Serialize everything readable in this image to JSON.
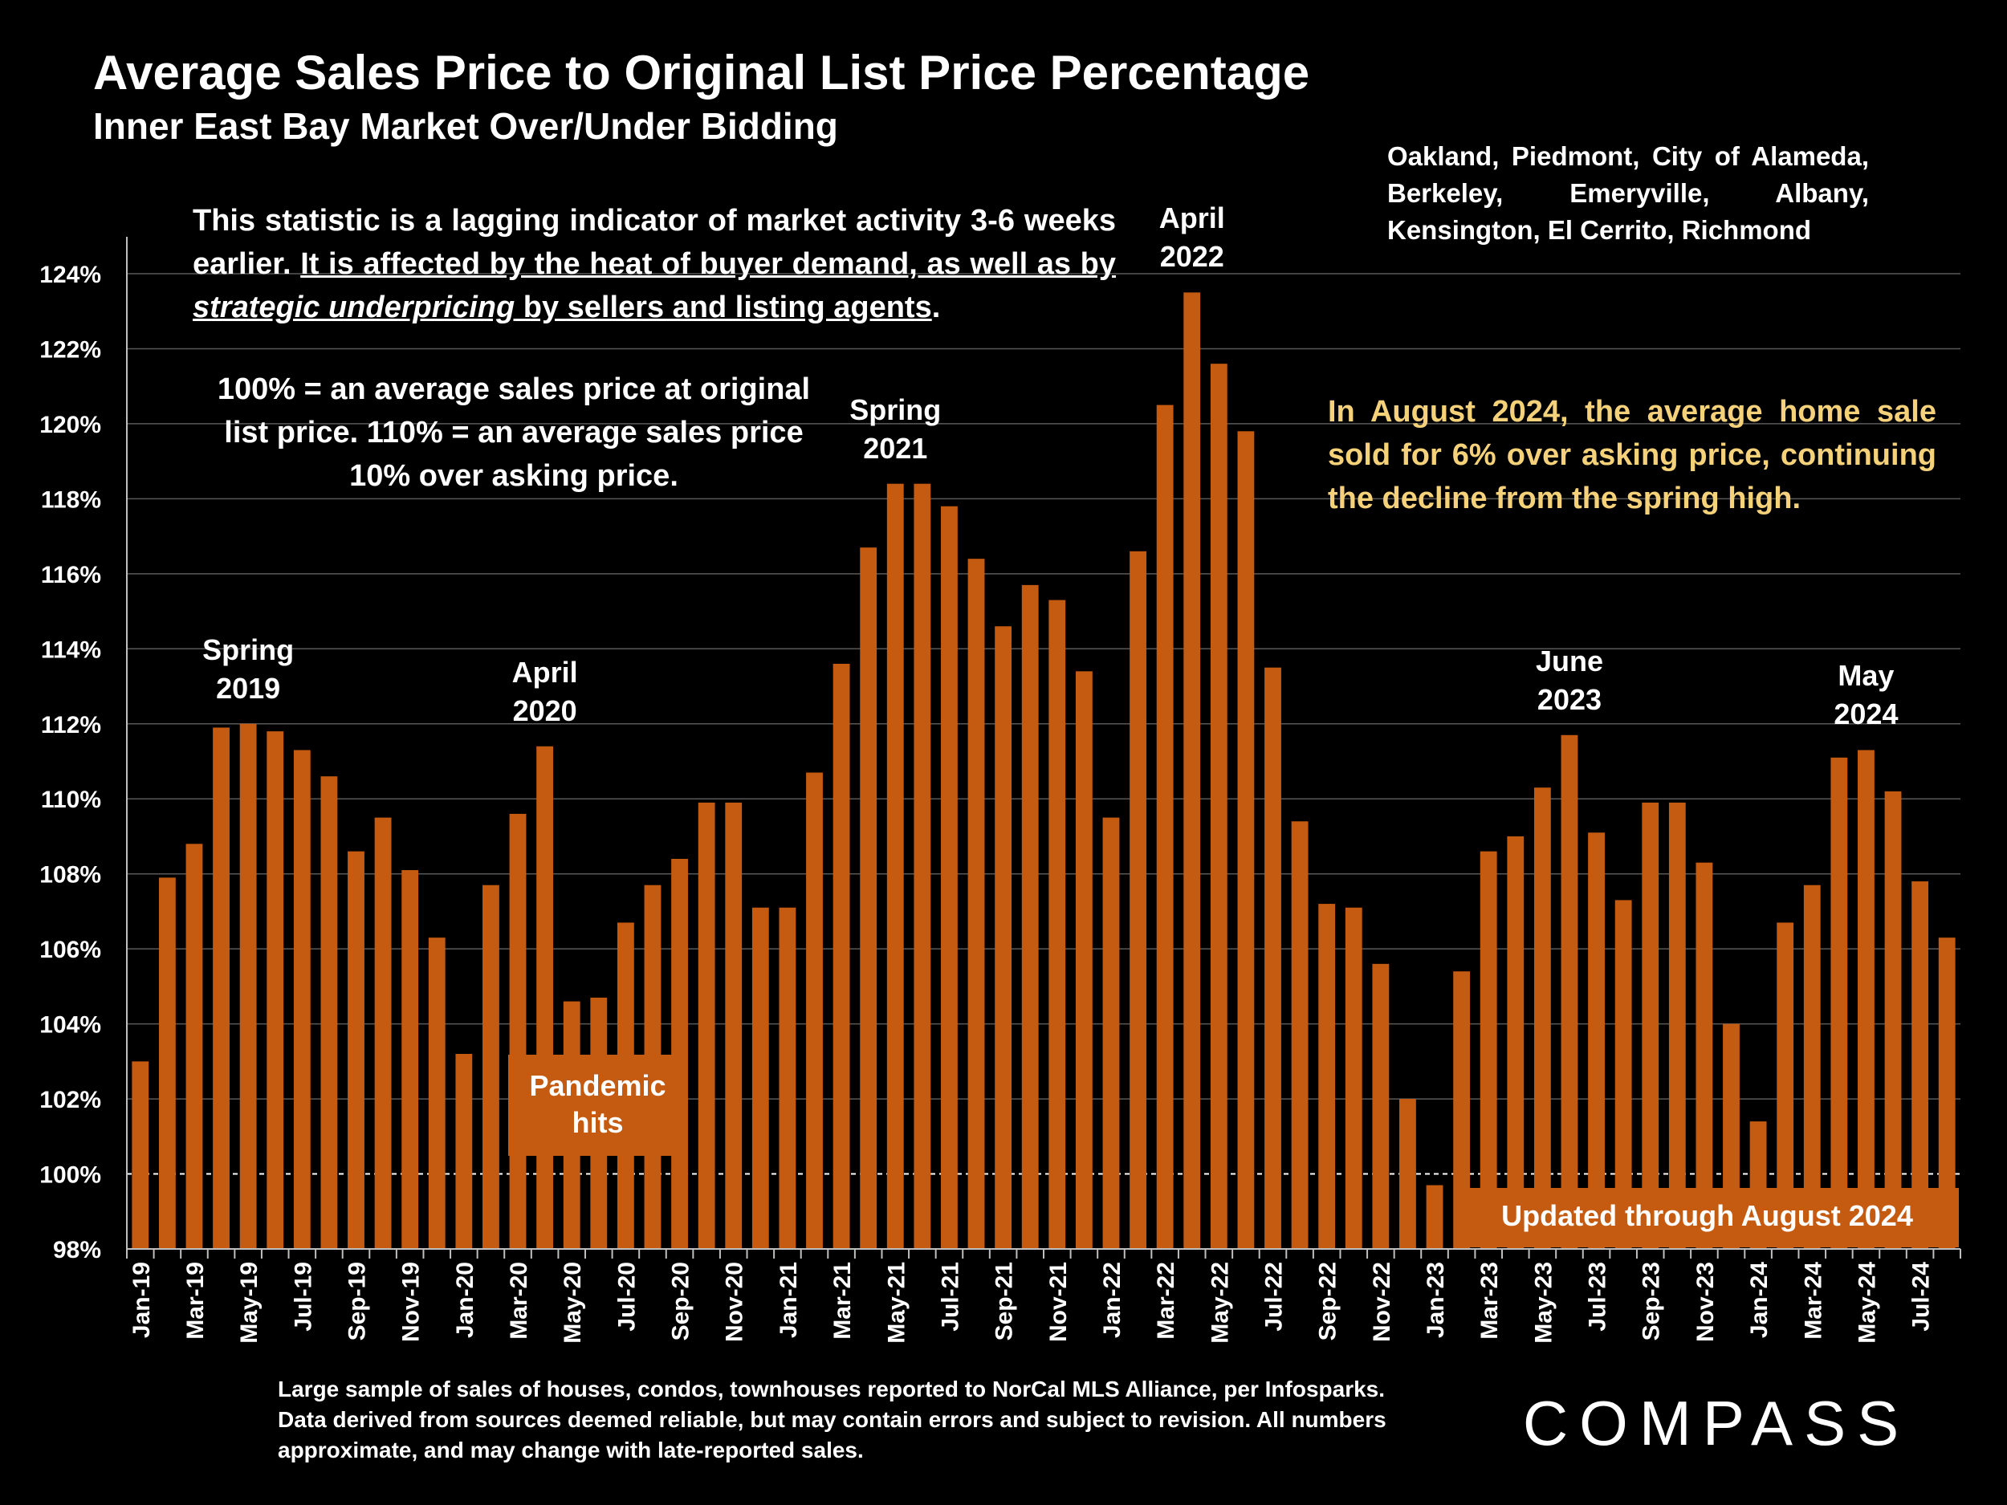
{
  "header": {
    "title": "Average Sales Price to Original List Price Percentage",
    "subtitle": "Inner East Bay Market Over/Under Bidding"
  },
  "notes": {
    "region_line1": "Oakland, Piedmont, City of Alameda,",
    "region_line2": "Berkeley, Emeryville, Albany,",
    "region_line3": "Kensington, El Cerrito, Richmond",
    "lag_part1": "This statistic is a lagging indicator of market activity 3-6 weeks earlier. ",
    "lag_part2": "It is affected by the heat of buyer demand, as well as by ",
    "lag_part3": "strategic underpricing",
    "lag_part4": " by sellers and listing agents",
    "lag_part5": ".",
    "definition": "100% = an average sales price at original list price. 110% = an average sales price 10% over asking price.",
    "august": "In August 2024, the average home sale sold for 6% over asking price, continuing the decline from the spring high.",
    "pandemic": "Pandemic hits",
    "updated": "Updated through August 2024",
    "footnote": "Large sample of sales of houses, condos, townhouses reported to NorCal MLS Alliance, per Infosparks. Data derived from sources deemed reliable, but may contain errors and subject to revision. All numbers approximate, and may change with late-reported sales.",
    "logo": "COMPASS"
  },
  "colors": {
    "bar": "#c55a11",
    "background": "#000000",
    "grid": "#595959",
    "highlight_text": "#f5d27a"
  },
  "chart_data": {
    "type": "bar",
    "title": "Average Sales Price to Original List Price Percentage",
    "subtitle": "Inner East Bay Market Over/Under Bidding",
    "ylim": [
      98,
      124
    ],
    "y_ticks": [
      "98%",
      "100%",
      "102%",
      "104%",
      "106%",
      "108%",
      "110%",
      "112%",
      "114%",
      "116%",
      "118%",
      "120%",
      "122%",
      "124%"
    ],
    "grid": true,
    "reference_line": 100,
    "categories": [
      "Jan-19",
      "Feb-19",
      "Mar-19",
      "Apr-19",
      "May-19",
      "Jun-19",
      "Jul-19",
      "Aug-19",
      "Sep-19",
      "Oct-19",
      "Nov-19",
      "Dec-19",
      "Jan-20",
      "Feb-20",
      "Mar-20",
      "Apr-20",
      "May-20",
      "Jun-20",
      "Jul-20",
      "Aug-20",
      "Sep-20",
      "Oct-20",
      "Nov-20",
      "Dec-20",
      "Jan-21",
      "Feb-21",
      "Mar-21",
      "Apr-21",
      "May-21",
      "Jun-21",
      "Jul-21",
      "Aug-21",
      "Sep-21",
      "Oct-21",
      "Nov-21",
      "Dec-21",
      "Jan-22",
      "Feb-22",
      "Mar-22",
      "Apr-22",
      "May-22",
      "Jun-22",
      "Jul-22",
      "Aug-22",
      "Sep-22",
      "Oct-22",
      "Nov-22",
      "Dec-22",
      "Jan-23",
      "Feb-23",
      "Mar-23",
      "Apr-23",
      "May-23",
      "Jun-23",
      "Jul-23",
      "Aug-23",
      "Sep-23",
      "Oct-23",
      "Nov-23",
      "Dec-23",
      "Jan-24",
      "Feb-24",
      "Mar-24",
      "Apr-24",
      "May-24",
      "Jun-24",
      "Jul-24",
      "Aug-24"
    ],
    "x_tick_labels": [
      "Jan-19",
      "Mar-19",
      "May-19",
      "Jul-19",
      "Sep-19",
      "Nov-19",
      "Jan-20",
      "Mar-20",
      "May-20",
      "Jul-20",
      "Sep-20",
      "Nov-20",
      "Jan-21",
      "Mar-21",
      "May-21",
      "Jul-21",
      "Sep-21",
      "Nov-21",
      "Jan-22",
      "Mar-22",
      "May-22",
      "Jul-22",
      "Sep-22",
      "Nov-22",
      "Jan-23",
      "Mar-23",
      "May-23",
      "Jul-23",
      "Sep-23",
      "Nov-23",
      "Jan-24",
      "Mar-24",
      "May-24",
      "Jul-24"
    ],
    "values": [
      103.0,
      107.9,
      108.8,
      111.9,
      112.0,
      111.8,
      111.3,
      110.6,
      108.6,
      109.5,
      108.1,
      106.3,
      103.2,
      107.7,
      109.6,
      111.4,
      104.6,
      104.7,
      106.7,
      107.7,
      108.4,
      109.9,
      109.9,
      107.1,
      107.1,
      110.7,
      113.6,
      116.7,
      118.4,
      118.4,
      117.8,
      116.4,
      114.6,
      115.7,
      115.3,
      113.4,
      109.5,
      116.6,
      120.5,
      123.5,
      121.6,
      119.8,
      113.5,
      109.4,
      107.2,
      107.1,
      105.6,
      102.0,
      99.7,
      105.4,
      108.6,
      109.0,
      110.3,
      111.7,
      109.1,
      107.3,
      109.9,
      109.9,
      108.3,
      104.0,
      101.4,
      106.7,
      107.7,
      111.1,
      111.3,
      110.2,
      107.8,
      106.3
    ],
    "annotations": [
      {
        "index": 4,
        "line1": "Spring",
        "line2": "2019"
      },
      {
        "index": 15,
        "line1": "April",
        "line2": "2020"
      },
      {
        "index": 28,
        "line1": "Spring",
        "line2": "2021"
      },
      {
        "index": 39,
        "line1": "April",
        "line2": "2022"
      },
      {
        "index": 53,
        "line1": "June",
        "line2": "2023"
      },
      {
        "index": 64,
        "line1": "May",
        "line2": "2024"
      }
    ]
  }
}
